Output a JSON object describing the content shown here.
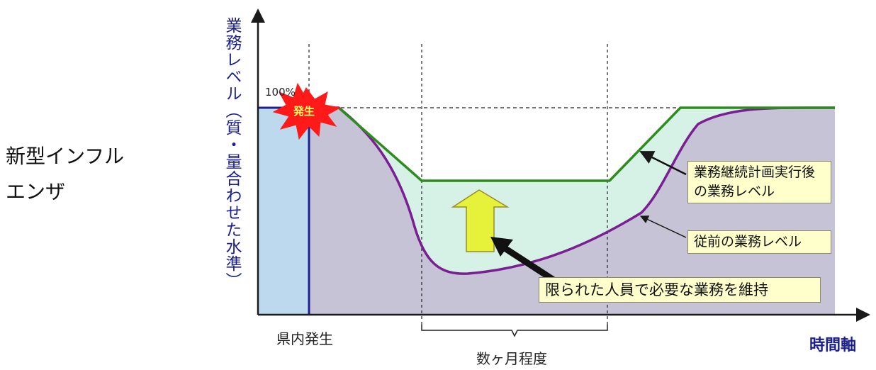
{
  "left_title": [
    "新型インフル",
    "エンザ"
  ],
  "y_axis_label": "業務レベル（質・量合わせた水準）",
  "x_axis_label": "時間軸",
  "level_100_label": "100%",
  "burst_label": "発生",
  "onset_label": "県内発生",
  "duration_label": "数ヶ月程度",
  "callouts": {
    "bcp_level": "業務継続計画実行後の業務レベル",
    "previous_level": "従前の業務レベル",
    "maintain": "限られた人員で必要な業務を維持"
  },
  "colors": {
    "axis": "#1a1a1a",
    "ylabel": "#1b1f8f",
    "baseline_fill": "#bcd9ee",
    "baseline_line": "#1f1f8f",
    "previous_fill": "#c7c3d6",
    "bcp_fill": "#d6f2e6",
    "bcp_line": "#2e8b1e",
    "previous_line": "#7b1e93",
    "up_arrow": "#e6f23a",
    "burst": "#ff1a1a",
    "callout_bg": "#ffffcc"
  },
  "icons": {
    "burst": "explosion-burst-icon",
    "up_arrow": "up-arrow-icon",
    "pointer": "pointer-arrow-icon"
  }
}
